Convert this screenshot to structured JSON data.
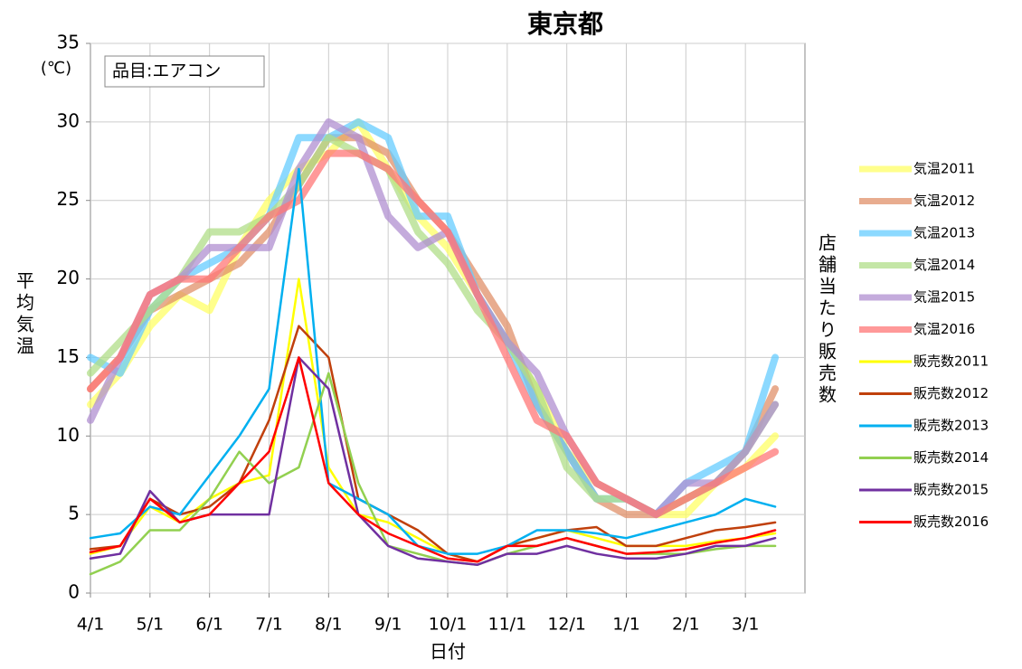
{
  "chart_data": {
    "type": "line",
    "title": "東京都",
    "x_label": "日付",
    "y_label": "平均気温",
    "y_unit": "(℃)",
    "y2_label": "店舗当たり販売数",
    "annotation": "品目:エアコン",
    "categories": [
      "4/1",
      null,
      "5/1",
      null,
      "6/1",
      null,
      "7/1",
      null,
      "8/1",
      null,
      "9/1",
      null,
      "10/1",
      null,
      "11/1",
      null,
      "12/1",
      null,
      "1/1",
      null,
      "2/1",
      null,
      "3/1",
      null
    ],
    "ylim": [
      0,
      35
    ],
    "yticks": [
      0,
      5,
      10,
      15,
      20,
      25,
      30,
      35
    ],
    "grid": true,
    "legend": "right",
    "series": [
      {
        "name": "気温2011",
        "color": "#ffff66",
        "linewidth": 8,
        "values": [
          12,
          14,
          17,
          19,
          18,
          22,
          25,
          27,
          28,
          30,
          27,
          24,
          22,
          19,
          16,
          13,
          9,
          7,
          6,
          5,
          5,
          7,
          8,
          10
        ]
      },
      {
        "name": "気温2012",
        "color": "#e0906a",
        "linewidth": 8,
        "values": [
          13,
          15,
          18,
          19,
          20,
          21,
          23,
          26,
          29,
          29,
          28,
          25,
          23,
          20,
          17,
          12,
          9,
          6,
          5,
          5,
          6,
          7,
          9,
          13
        ]
      },
      {
        "name": "気温2013",
        "color": "#66ccff",
        "linewidth": 8,
        "values": [
          15,
          14,
          18,
          20,
          21,
          22,
          24,
          29,
          29,
          30,
          29,
          24,
          24,
          19,
          16,
          12,
          9,
          6,
          6,
          5,
          7,
          8,
          9,
          15
        ]
      },
      {
        "name": "気温2014",
        "color": "#b0dd88",
        "linewidth": 8,
        "values": [
          14,
          16,
          18,
          20,
          23,
          23,
          24,
          26,
          29,
          28,
          27,
          23,
          21,
          18,
          16,
          13,
          8,
          6,
          6,
          5,
          6,
          7,
          9,
          12
        ]
      },
      {
        "name": "気温2015",
        "color": "#b08fd0",
        "linewidth": 8,
        "values": [
          11,
          15,
          19,
          20,
          22,
          22,
          22,
          27,
          30,
          29,
          24,
          22,
          23,
          19,
          16,
          14,
          10,
          7,
          6,
          5,
          7,
          7,
          9,
          12
        ]
      },
      {
        "name": "気温2016",
        "color": "#ff7777",
        "linewidth": 8,
        "values": [
          13,
          15,
          19,
          20,
          20,
          22,
          24,
          25,
          28,
          28,
          27,
          25,
          23,
          19,
          15,
          11,
          10,
          7,
          6,
          5,
          6,
          7,
          8,
          9
        ]
      },
      {
        "name": "販売数2011",
        "color": "#ffff00",
        "linewidth": 2.5,
        "values": [
          2.5,
          3,
          5.5,
          4.5,
          6,
          7,
          7.5,
          20,
          8,
          5,
          4.5,
          3.5,
          2.5,
          2,
          3,
          3.5,
          4,
          3.5,
          3,
          3,
          3,
          3.3,
          3.5,
          3.8
        ]
      },
      {
        "name": "販売数2012",
        "color": "#c0400c",
        "linewidth": 2.5,
        "values": [
          2.8,
          3,
          6,
          5,
          5.5,
          7,
          11,
          17,
          15,
          6,
          5,
          4,
          2.5,
          2,
          3,
          3.5,
          4,
          4.2,
          3,
          3,
          3.5,
          4,
          4.2,
          4.5
        ]
      },
      {
        "name": "販売数2013",
        "color": "#00b0f0",
        "linewidth": 2.5,
        "values": [
          3.5,
          3.8,
          5.5,
          5,
          7.5,
          10,
          13,
          27,
          7,
          6,
          5,
          3,
          2.5,
          2.5,
          3,
          4,
          4,
          3.8,
          3.5,
          4,
          4.5,
          5,
          6,
          5.5
        ]
      },
      {
        "name": "販売数2014",
        "color": "#92d050",
        "linewidth": 2.5,
        "values": [
          1.2,
          2,
          4,
          4,
          6,
          9,
          7,
          8,
          14,
          7,
          3,
          2.5,
          2,
          1.8,
          2.5,
          3,
          3.5,
          3,
          2.5,
          2.5,
          2.5,
          2.8,
          3,
          3
        ]
      },
      {
        "name": "販売数2015",
        "color": "#7030a0",
        "linewidth": 2.5,
        "values": [
          2.2,
          2.5,
          6.5,
          4.5,
          5,
          5,
          5,
          15,
          13,
          5,
          3,
          2.2,
          2,
          1.8,
          2.5,
          2.5,
          3,
          2.5,
          2.2,
          2.2,
          2.5,
          3,
          3,
          3.5
        ]
      },
      {
        "name": "販売数2016",
        "color": "#ff0000",
        "linewidth": 2.5,
        "values": [
          2.6,
          3,
          6,
          4.5,
          5,
          7,
          9,
          15,
          7,
          5,
          3.8,
          3,
          2.2,
          2,
          3,
          3,
          3.5,
          3,
          2.5,
          2.6,
          2.8,
          3.2,
          3.5,
          4
        ]
      }
    ]
  }
}
